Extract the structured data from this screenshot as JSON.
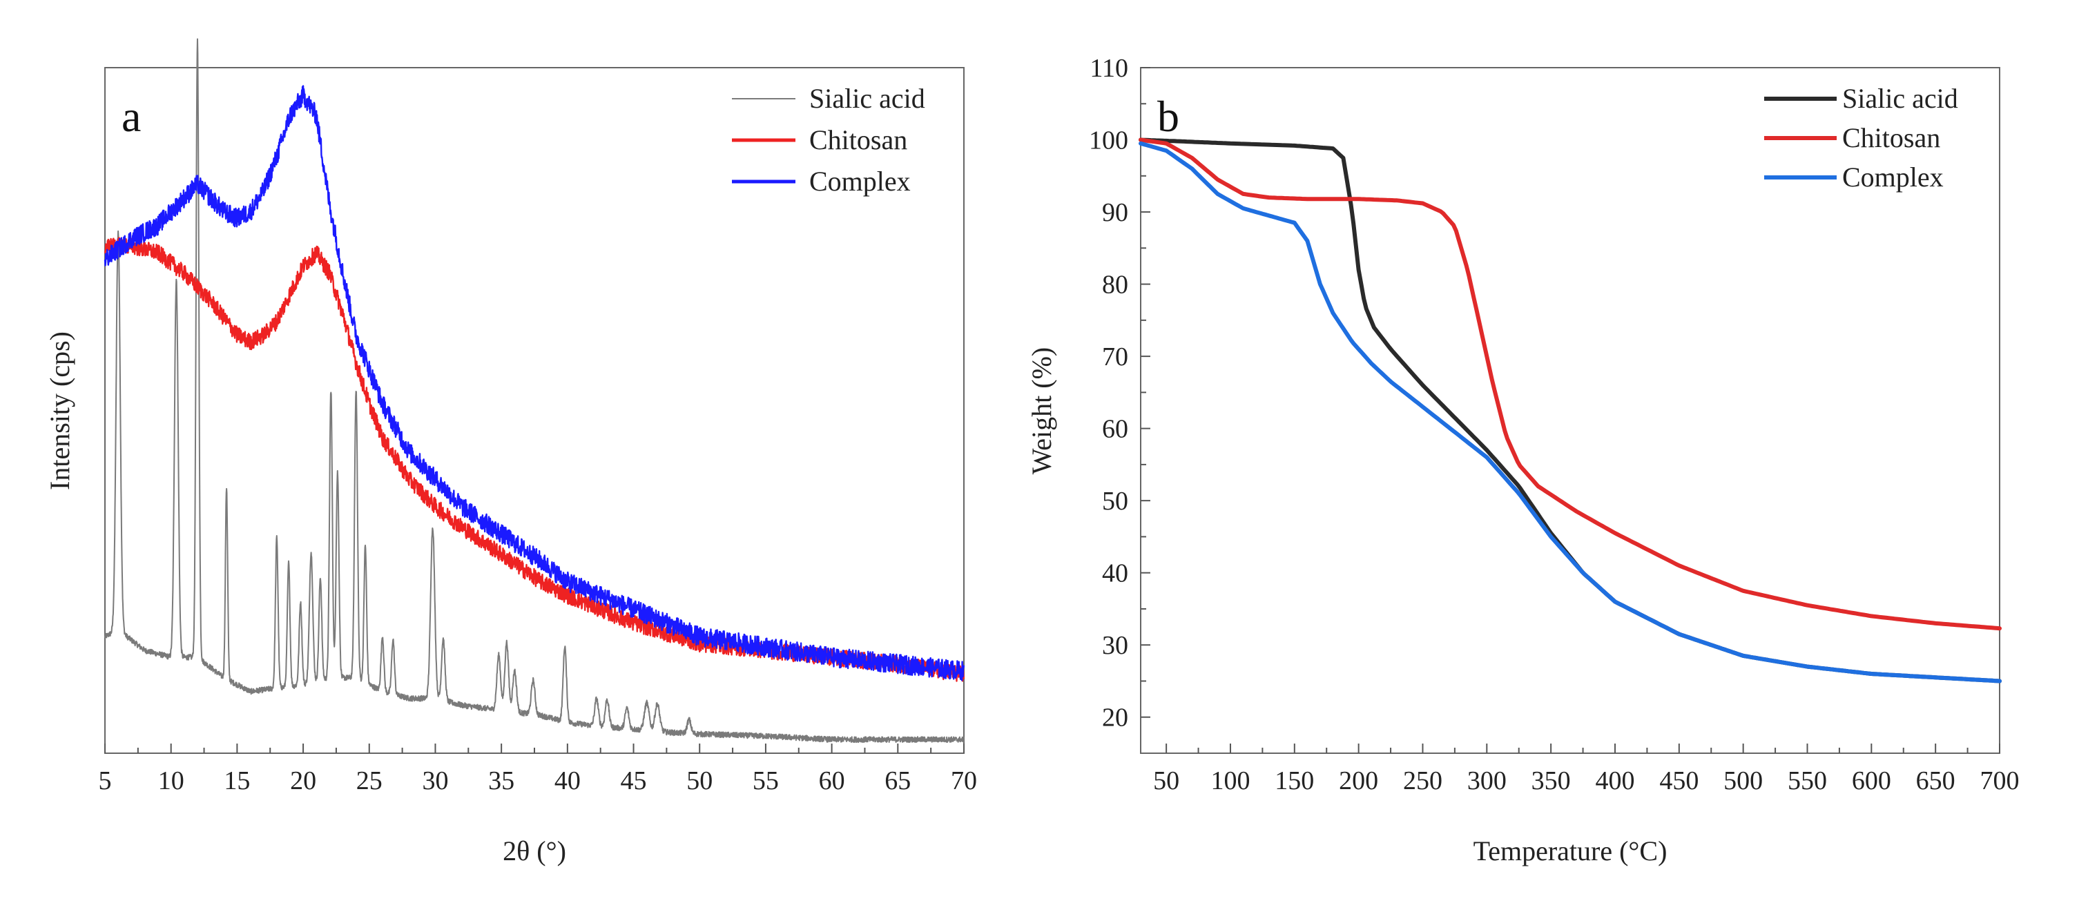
{
  "chart_data": [
    {
      "panel": "a",
      "type": "line",
      "xlabel": "2θ (°)",
      "ylabel": "Intensity (cps)",
      "xlim": [
        5,
        70
      ],
      "ylim": [
        0,
        1
      ],
      "xticks": [
        5,
        10,
        15,
        20,
        25,
        30,
        35,
        40,
        45,
        50,
        55,
        60,
        65,
        70
      ],
      "yticks_shown": false,
      "legend": "top-right",
      "colors": {
        "Sialic acid": "#7a7a7a",
        "Chitosan": "#ee2222",
        "Complex": "#1a1aff"
      },
      "noise": {
        "Sialic acid": 0.004,
        "Chitosan": 0.012,
        "Complex": 0.014
      },
      "series": [
        {
          "name": "Sialic acid",
          "baseline": [
            [
              5,
              0.17
            ],
            [
              6,
              0.18
            ],
            [
              8,
              0.15
            ],
            [
              10,
              0.14
            ],
            [
              12,
              0.14
            ],
            [
              14,
              0.11
            ],
            [
              16,
              0.09
            ],
            [
              18,
              0.095
            ],
            [
              20,
              0.1
            ],
            [
              22,
              0.11
            ],
            [
              24,
              0.11
            ],
            [
              26,
              0.09
            ],
            [
              28,
              0.08
            ],
            [
              30,
              0.08
            ],
            [
              32,
              0.07
            ],
            [
              34,
              0.065
            ],
            [
              36,
              0.06
            ],
            [
              38,
              0.055
            ],
            [
              40,
              0.045
            ],
            [
              42,
              0.04
            ],
            [
              45,
              0.035
            ],
            [
              48,
              0.03
            ],
            [
              50,
              0.028
            ],
            [
              55,
              0.025
            ],
            [
              60,
              0.02
            ],
            [
              65,
              0.02
            ],
            [
              70,
              0.02
            ]
          ],
          "peaks": [
            [
              6.0,
              0.58,
              0.22
            ],
            [
              10.4,
              0.55,
              0.2
            ],
            [
              12.0,
              0.9,
              0.15
            ],
            [
              14.2,
              0.28,
              0.12
            ],
            [
              18.0,
              0.22,
              0.14
            ],
            [
              18.9,
              0.18,
              0.14
            ],
            [
              19.8,
              0.12,
              0.15
            ],
            [
              20.6,
              0.19,
              0.18
            ],
            [
              21.3,
              0.15,
              0.15
            ],
            [
              22.1,
              0.42,
              0.15
            ],
            [
              22.6,
              0.3,
              0.15
            ],
            [
              24.0,
              0.42,
              0.16
            ],
            [
              24.7,
              0.2,
              0.14
            ],
            [
              26.0,
              0.08,
              0.15
            ],
            [
              26.8,
              0.08,
              0.15
            ],
            [
              29.8,
              0.25,
              0.22
            ],
            [
              30.6,
              0.09,
              0.18
            ],
            [
              34.8,
              0.08,
              0.2
            ],
            [
              35.4,
              0.1,
              0.2
            ],
            [
              36.0,
              0.06,
              0.2
            ],
            [
              37.4,
              0.05,
              0.2
            ],
            [
              39.8,
              0.11,
              0.18
            ],
            [
              42.2,
              0.04,
              0.2
            ],
            [
              43.0,
              0.04,
              0.2
            ],
            [
              44.5,
              0.03,
              0.2
            ],
            [
              46.0,
              0.04,
              0.25
            ],
            [
              46.8,
              0.04,
              0.25
            ],
            [
              49.2,
              0.02,
              0.2
            ]
          ]
        },
        {
          "name": "Chitosan",
          "curve": [
            [
              5,
              0.74
            ],
            [
              7,
              0.74
            ],
            [
              9,
              0.73
            ],
            [
              11,
              0.7
            ],
            [
              13,
              0.66
            ],
            [
              15,
              0.61
            ],
            [
              16,
              0.6
            ],
            [
              17,
              0.61
            ],
            [
              18,
              0.63
            ],
            [
              19,
              0.67
            ],
            [
              20,
              0.71
            ],
            [
              21,
              0.73
            ],
            [
              22,
              0.7
            ],
            [
              23,
              0.64
            ],
            [
              24,
              0.57
            ],
            [
              25,
              0.51
            ],
            [
              26,
              0.46
            ],
            [
              28,
              0.4
            ],
            [
              30,
              0.36
            ],
            [
              32,
              0.33
            ],
            [
              35,
              0.29
            ],
            [
              38,
              0.25
            ],
            [
              40,
              0.23
            ],
            [
              45,
              0.19
            ],
            [
              50,
              0.16
            ],
            [
              55,
              0.15
            ],
            [
              60,
              0.14
            ],
            [
              65,
              0.13
            ],
            [
              70,
              0.115
            ]
          ]
        },
        {
          "name": "Complex",
          "curve": [
            [
              5,
              0.72
            ],
            [
              7,
              0.75
            ],
            [
              9,
              0.77
            ],
            [
              11,
              0.81
            ],
            [
              12,
              0.83
            ],
            [
              13,
              0.81
            ],
            [
              14,
              0.79
            ],
            [
              15,
              0.78
            ],
            [
              16,
              0.79
            ],
            [
              17,
              0.82
            ],
            [
              18,
              0.87
            ],
            [
              19,
              0.93
            ],
            [
              20,
              0.96
            ],
            [
              21,
              0.93
            ],
            [
              22,
              0.8
            ],
            [
              23,
              0.7
            ],
            [
              24,
              0.61
            ],
            [
              25,
              0.56
            ],
            [
              26,
              0.51
            ],
            [
              28,
              0.44
            ],
            [
              30,
              0.4
            ],
            [
              32,
              0.36
            ],
            [
              35,
              0.32
            ],
            [
              38,
              0.28
            ],
            [
              40,
              0.25
            ],
            [
              45,
              0.21
            ],
            [
              50,
              0.17
            ],
            [
              55,
              0.155
            ],
            [
              60,
              0.14
            ],
            [
              65,
              0.13
            ],
            [
              70,
              0.12
            ]
          ]
        }
      ],
      "legend_entries": [
        "Sialic acid",
        "Chitosan",
        "Complex"
      ]
    },
    {
      "panel": "b",
      "type": "line",
      "xlabel": "Temperature (°C)",
      "ylabel": "Weight (%)",
      "xlim": [
        30,
        700
      ],
      "ylim": [
        15,
        110
      ],
      "xticks": [
        50,
        100,
        150,
        200,
        250,
        300,
        350,
        400,
        450,
        500,
        550,
        600,
        650,
        700
      ],
      "yticks": [
        20,
        30,
        40,
        50,
        60,
        70,
        80,
        90,
        100,
        110
      ],
      "legend": "top-right",
      "colors": {
        "Sialic acid": "#2a2a2a",
        "Chitosan": "#e02a2a",
        "Complex": "#1f6fe0"
      },
      "series": [
        {
          "name": "Sialic acid",
          "points": [
            [
              30,
              100
            ],
            [
              60,
              99.8
            ],
            [
              100,
              99.5
            ],
            [
              150,
              99.2
            ],
            [
              180,
              98.8
            ],
            [
              188,
              97.5
            ],
            [
              195,
              90
            ],
            [
              200,
              82
            ],
            [
              205,
              77
            ],
            [
              212,
              74
            ],
            [
              225,
              71
            ],
            [
              250,
              66
            ],
            [
              275,
              61.5
            ],
            [
              300,
              57
            ],
            [
              325,
              52
            ],
            [
              350,
              45.5
            ],
            [
              375,
              40
            ],
            [
              400,
              36
            ],
            [
              450,
              31.5
            ],
            [
              500,
              28.5
            ],
            [
              550,
              27
            ],
            [
              600,
              26
            ],
            [
              650,
              25.5
            ],
            [
              700,
              25
            ]
          ]
        },
        {
          "name": "Chitosan",
          "points": [
            [
              30,
              100
            ],
            [
              50,
              99.5
            ],
            [
              70,
              97.5
            ],
            [
              90,
              94.5
            ],
            [
              110,
              92.5
            ],
            [
              130,
              92
            ],
            [
              160,
              91.8
            ],
            [
              200,
              91.8
            ],
            [
              230,
              91.6
            ],
            [
              250,
              91.2
            ],
            [
              265,
              90
            ],
            [
              275,
              88
            ],
            [
              285,
              82
            ],
            [
              295,
              74
            ],
            [
              305,
              66
            ],
            [
              315,
              59
            ],
            [
              325,
              55
            ],
            [
              340,
              52
            ],
            [
              370,
              48.5
            ],
            [
              400,
              45.5
            ],
            [
              450,
              41
            ],
            [
              500,
              37.5
            ],
            [
              550,
              35.5
            ],
            [
              600,
              34
            ],
            [
              650,
              33
            ],
            [
              700,
              32.3
            ]
          ]
        },
        {
          "name": "Complex",
          "points": [
            [
              30,
              99.5
            ],
            [
              50,
              98.5
            ],
            [
              70,
              96
            ],
            [
              90,
              92.5
            ],
            [
              110,
              90.5
            ],
            [
              130,
              89.5
            ],
            [
              150,
              88.5
            ],
            [
              160,
              86
            ],
            [
              170,
              80
            ],
            [
              180,
              76
            ],
            [
              195,
              72
            ],
            [
              210,
              69
            ],
            [
              225,
              66.5
            ],
            [
              250,
              63
            ],
            [
              275,
              59.5
            ],
            [
              300,
              56
            ],
            [
              325,
              51
            ],
            [
              350,
              45
            ],
            [
              375,
              40
            ],
            [
              400,
              36
            ],
            [
              450,
              31.5
            ],
            [
              500,
              28.5
            ],
            [
              550,
              27
            ],
            [
              600,
              26
            ],
            [
              650,
              25.5
            ],
            [
              700,
              25
            ]
          ]
        }
      ],
      "legend_entries": [
        "Sialic acid",
        "Chitosan",
        "Complex"
      ]
    }
  ]
}
